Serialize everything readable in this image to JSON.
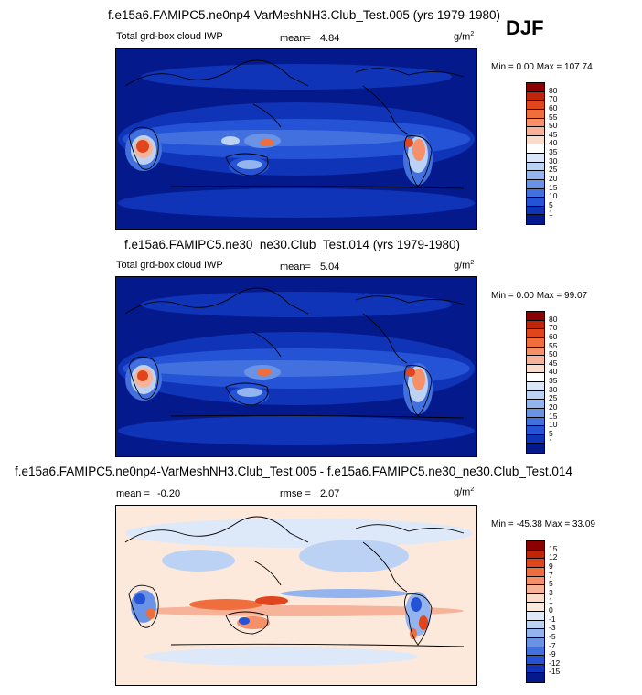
{
  "season": "DJF",
  "panels": [
    {
      "title": "f.e15a6.FAMIPC5.ne0np4-VarMeshNH3.Club_Test.005 (yrs 1979-1980)",
      "variable": "Total grd-box cloud IWP",
      "mean_label": "mean=",
      "mean_value": "4.84",
      "units": "g/m",
      "units_exp": "2",
      "minmax": "Min =   0.00 Max = 107.74",
      "levels": [
        "80",
        "70",
        "60",
        "55",
        "50",
        "45",
        "40",
        "35",
        "30",
        "25",
        "20",
        "15",
        "10",
        "5",
        "1"
      ],
      "colors": [
        "#8b0000",
        "#c0240b",
        "#e0451d",
        "#f06d3c",
        "#f59069",
        "#f7b39a",
        "#fadac9",
        "#ffffff",
        "#dbe7f8",
        "#bcd2f5",
        "#93b4ee",
        "#6a93e6",
        "#4271df",
        "#2453d6",
        "#0f34b8",
        "#041a8c"
      ]
    },
    {
      "title": "f.e15a6.FAMIPC5.ne30_ne30.Club_Test.014 (yrs 1979-1980)",
      "variable": "Total grd-box cloud IWP",
      "mean_label": "mean=",
      "mean_value": "5.04",
      "units": "g/m",
      "units_exp": "2",
      "minmax": "Min =   0.00 Max =  99.07",
      "levels": [
        "80",
        "70",
        "60",
        "55",
        "50",
        "45",
        "40",
        "35",
        "30",
        "25",
        "20",
        "15",
        "10",
        "5",
        "1"
      ],
      "colors": [
        "#8b0000",
        "#c0240b",
        "#e0451d",
        "#f06d3c",
        "#f59069",
        "#f7b39a",
        "#fadac9",
        "#ffffff",
        "#dbe7f8",
        "#bcd2f5",
        "#93b4ee",
        "#6a93e6",
        "#4271df",
        "#2453d6",
        "#0f34b8",
        "#041a8c"
      ]
    },
    {
      "title": "f.e15a6.FAMIPC5.ne0np4-VarMeshNH3.Club_Test.005 - f.e15a6.FAMIPC5.ne30_ne30.Club_Test.014",
      "variable": "",
      "mean_label": "mean =",
      "mean_value": "-0.20",
      "rmse_label": "rmse =",
      "rmse_value": "2.07",
      "units": "g/m",
      "units_exp": "2",
      "minmax": "Min = -45.38 Max =  33.09",
      "levels": [
        "15",
        "12",
        "9",
        "7",
        "5",
        "3",
        "1",
        "0",
        "-1",
        "-3",
        "-5",
        "-7",
        "-9",
        "-12",
        "-15"
      ],
      "colors": [
        "#8b0000",
        "#c0240b",
        "#e0451d",
        "#f06d3c",
        "#f59069",
        "#f7b39a",
        "#fadac9",
        "#fde9dc",
        "#dde8f8",
        "#bcd2f5",
        "#93b4ee",
        "#6a93e6",
        "#4271df",
        "#2453d6",
        "#0f34b8",
        "#041a8c"
      ]
    }
  ]
}
